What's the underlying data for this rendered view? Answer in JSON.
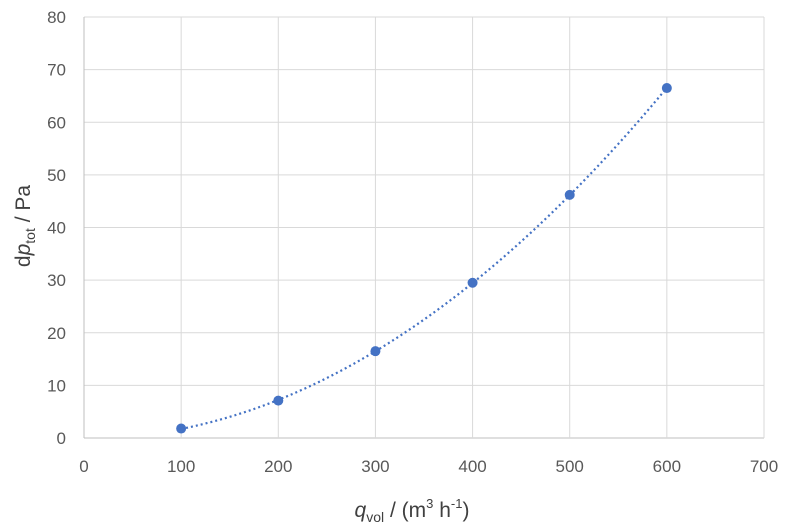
{
  "chart_data": {
    "type": "scatter",
    "x": [
      100,
      200,
      300,
      400,
      500,
      600
    ],
    "y": [
      1.8,
      7.1,
      16.5,
      29.5,
      46.2,
      66.5
    ],
    "xlim": [
      0,
      700
    ],
    "ylim": [
      0,
      80
    ],
    "xticks": [
      0,
      100,
      200,
      300,
      400,
      500,
      600,
      700
    ],
    "yticks": [
      0,
      10,
      20,
      30,
      40,
      50,
      60,
      70,
      80
    ],
    "xlabel": {
      "var": "q",
      "sub": "vol",
      "rest": " / (m",
      "exp1": "3",
      "mid": " h",
      "exp2": "-1",
      "close": ")"
    },
    "ylabel": {
      "prefix": "d",
      "var": "p",
      "sub": "tot",
      "rest": " / Pa"
    },
    "trendline": "polynomial",
    "grid": true,
    "marker_color": "#4472c4",
    "trend_color": "#4472c4"
  }
}
